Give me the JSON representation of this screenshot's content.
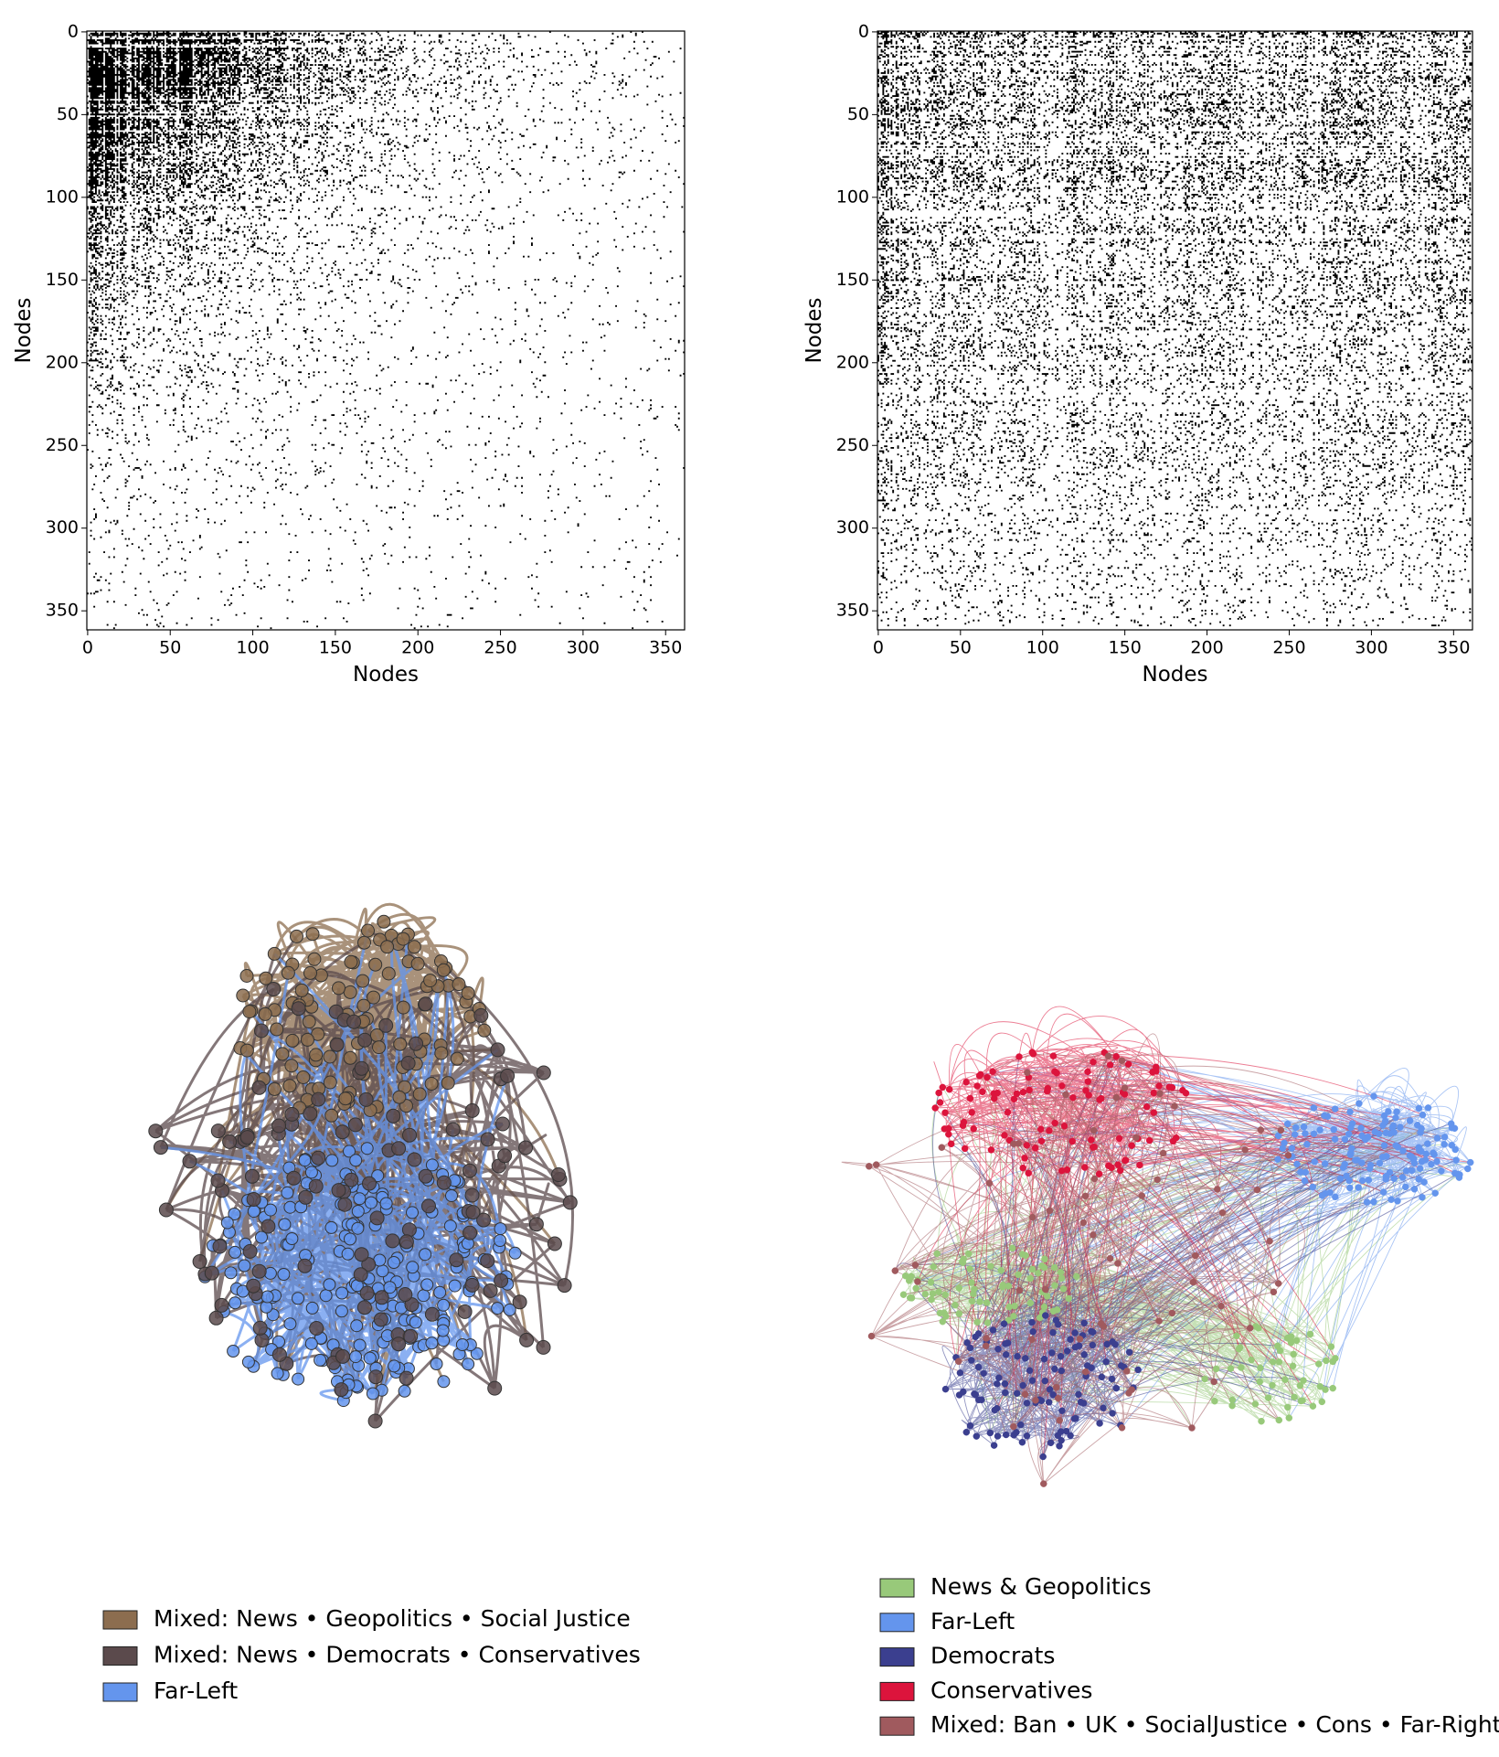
{
  "chart_data": [
    {
      "type": "matrix",
      "xlabel": "Nodes",
      "ylabel": "Nodes",
      "xlim": [
        -0.5,
        361.5
      ],
      "ylim": [
        361.5,
        -0.5
      ],
      "xticks": [
        0,
        50,
        100,
        150,
        200,
        250,
        300,
        350
      ],
      "yticks": [
        0,
        50,
        100,
        150,
        200,
        250,
        300,
        350
      ],
      "color": "#000000",
      "pattern": "nested"
    },
    {
      "type": "matrix",
      "xlabel": "Nodes",
      "ylabel": "Nodes",
      "xlim": [
        -0.5,
        361.5
      ],
      "ylim": [
        361.5,
        -0.5
      ],
      "xticks": [
        0,
        50,
        100,
        150,
        200,
        250,
        300,
        350
      ],
      "yticks": [
        0,
        50,
        100,
        150,
        200,
        250,
        300,
        350
      ],
      "color": "#000000",
      "pattern": "spread"
    },
    {
      "type": "network",
      "series": [
        {
          "name": "Mixed: News • Geopolitics • Social Justice",
          "color": "#8c6d4f"
        },
        {
          "name": "Mixed: News • Democrats • Conservatives",
          "color": "#5b4a4c"
        },
        {
          "name": "Far-Left",
          "color": "#6495ed"
        }
      ]
    },
    {
      "type": "network",
      "series": [
        {
          "name": "News & Geopolitics",
          "color": "#98c97a"
        },
        {
          "name": "Far-Left",
          "color": "#6495ed"
        },
        {
          "name": "Democrats",
          "color": "#3b3f8f"
        },
        {
          "name": "Conservatives",
          "color": "#dc143c"
        },
        {
          "name": "Mixed: Ban • UK • SocialJustice • Cons • Far-Right",
          "color": "#a05a5e"
        }
      ]
    }
  ]
}
